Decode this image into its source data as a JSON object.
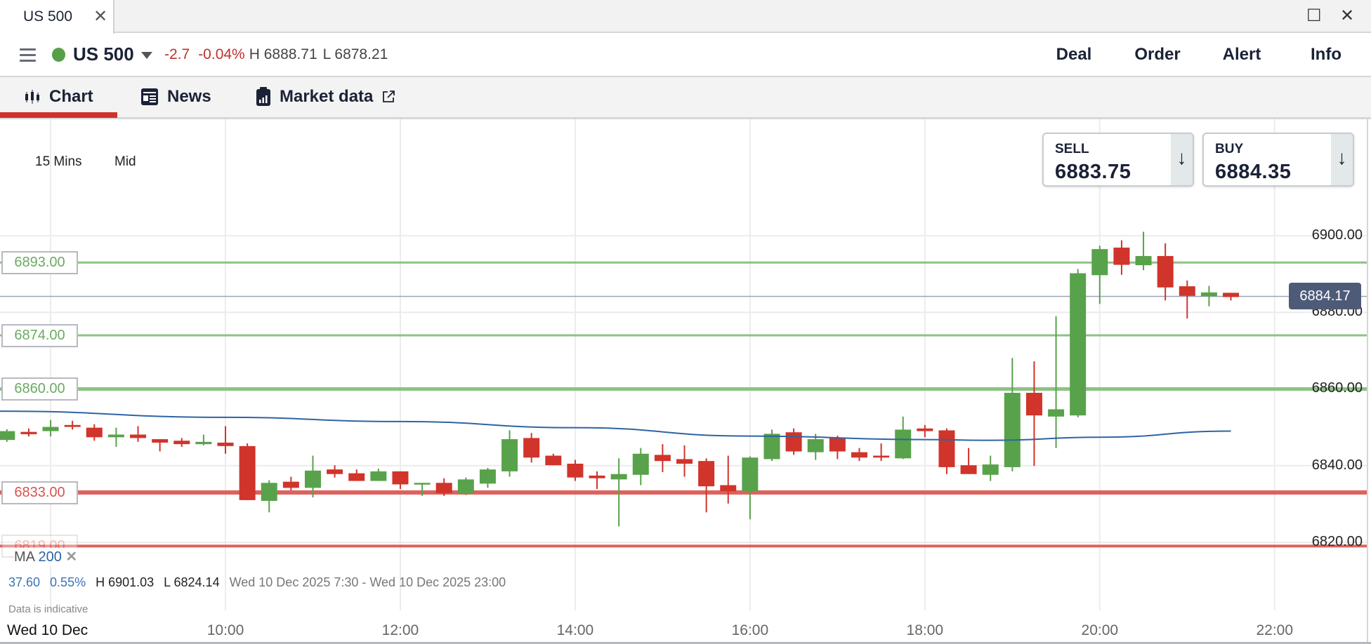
{
  "window": {
    "tab_label": "US 500",
    "close_tab_icon": "close-icon",
    "maximize_icon": "maximize-icon",
    "close_icon": "close-icon"
  },
  "instrument": {
    "name": "US 500",
    "status_color": "#56a04a",
    "change": "-2.7",
    "change_pct": "-0.04%",
    "high": "H 6888.71",
    "low": "L 6878.21",
    "actions": [
      "Deal",
      "Order",
      "Alert",
      "Info"
    ]
  },
  "tabs": [
    {
      "label": "Chart",
      "icon": "candlestick-icon",
      "active": true
    },
    {
      "label": "News",
      "icon": "newspaper-icon",
      "active": false
    },
    {
      "label": "Market data",
      "icon": "clipboard-chart-icon",
      "active": false,
      "external_icon": "external-link-icon"
    }
  ],
  "chart_controls": {
    "interval": "15 Mins",
    "price_type": "Mid"
  },
  "quotes": {
    "sell": {
      "label": "SELL",
      "price": "6883.75"
    },
    "buy": {
      "label": "BUY",
      "price": "6884.35"
    }
  },
  "indicator": {
    "name": "MA",
    "period": "200"
  },
  "summary": {
    "change": "37.60",
    "change_pct": "0.55%",
    "high": "H 6901.03",
    "low": "L 6824.14",
    "range": "Wed 10 Dec 2025 7:30 - Wed 10 Dec 2025 23:00",
    "note": "Data is indicative"
  },
  "colors": {
    "up": "#58a24b",
    "down": "#d0342b",
    "ma": "#2f64a3",
    "level_green": "#86c07e",
    "level_red": "#dd5a55",
    "current": "#4d5b78"
  },
  "chart_data": {
    "type": "candlestick",
    "date_label": "Wed 10 Dec",
    "x_ticks": [
      "10:00",
      "12:00",
      "14:00",
      "16:00",
      "18:00",
      "20:00",
      "22:00"
    ],
    "y_ticks": [
      "6900.00",
      "6880.00",
      "6860.00",
      "6840.00",
      "6820.00"
    ],
    "ylim": [
      6812,
      6940
    ],
    "grid": true,
    "current_price": "6884.17",
    "levels": [
      {
        "label": "6893.00",
        "value": 6893,
        "color": "green"
      },
      {
        "label": "6874.00",
        "value": 6874,
        "color": "green"
      },
      {
        "label": "6860.00",
        "value": 6860,
        "color": "green"
      },
      {
        "label": "6833.00",
        "value": 6833,
        "color": "red"
      },
      {
        "label": "6819.00",
        "value": 6819,
        "color": "red"
      }
    ],
    "candles_columns": [
      "time",
      "open",
      "high",
      "low",
      "close"
    ],
    "candles": [
      [
        "07:30",
        6846.7,
        6849.5,
        6846.2,
        6849.0
      ],
      [
        "07:45",
        6848.8,
        6849.7,
        6847.6,
        6848.2
      ],
      [
        "08:00",
        6849.0,
        6851.9,
        6847.6,
        6850.1
      ],
      [
        "08:15",
        6850.6,
        6851.7,
        6849.4,
        6850.1
      ],
      [
        "08:30",
        6849.9,
        6850.8,
        6846.5,
        6847.4
      ],
      [
        "08:45",
        6847.4,
        6849.9,
        6844.9,
        6848.1
      ],
      [
        "09:00",
        6848.1,
        6850.3,
        6846.2,
        6847.2
      ],
      [
        "09:15",
        6846.9,
        6846.9,
        6843.7,
        6846.0
      ],
      [
        "09:30",
        6846.5,
        6847.2,
        6844.9,
        6845.6
      ],
      [
        "09:45",
        6845.6,
        6848.1,
        6845.3,
        6846.2
      ],
      [
        "10:00",
        6846.0,
        6850.3,
        6843.1,
        6845.1
      ],
      [
        "10:15",
        6845.1,
        6845.8,
        6831.0,
        6831.0
      ],
      [
        "10:30",
        6830.8,
        6836.2,
        6827.8,
        6835.5
      ],
      [
        "10:45",
        6835.8,
        6837.1,
        6833.5,
        6834.2
      ],
      [
        "11:00",
        6834.2,
        6842.6,
        6831.7,
        6838.7
      ],
      [
        "11:15",
        6839.0,
        6840.1,
        6836.9,
        6837.8
      ],
      [
        "11:30",
        6838.0,
        6839.0,
        6836.0,
        6836.0
      ],
      [
        "11:45",
        6836.0,
        6839.2,
        6836.0,
        6838.5
      ],
      [
        "12:00",
        6838.5,
        6838.5,
        6833.9,
        6835.1
      ],
      [
        "12:15",
        6835.3,
        6835.5,
        6832.1,
        6835.5
      ],
      [
        "12:30",
        6835.5,
        6836.7,
        6832.1,
        6832.8
      ],
      [
        "12:45",
        6832.8,
        6836.9,
        6832.3,
        6836.4
      ],
      [
        "13:00",
        6835.3,
        6839.4,
        6834.2,
        6839.0
      ],
      [
        "13:15",
        6838.5,
        6849.2,
        6837.1,
        6846.9
      ],
      [
        "13:30",
        6847.2,
        6848.5,
        6840.8,
        6842.1
      ],
      [
        "13:45",
        6842.6,
        6843.1,
        6840.1,
        6840.1
      ],
      [
        "14:00",
        6840.5,
        6841.5,
        6836.0,
        6836.9
      ],
      [
        "14:15",
        6837.4,
        6838.5,
        6833.9,
        6836.7
      ],
      [
        "14:30",
        6836.4,
        6841.9,
        6824.14,
        6837.8
      ],
      [
        "14:45",
        6837.6,
        6844.6,
        6834.9,
        6843.1
      ],
      [
        "15:00",
        6842.8,
        6845.6,
        6838.3,
        6841.2
      ],
      [
        "15:15",
        6841.7,
        6845.3,
        6837.1,
        6840.5
      ],
      [
        "15:30",
        6841.2,
        6841.9,
        6827.8,
        6834.6
      ],
      [
        "15:45",
        6834.9,
        6842.6,
        6830.1,
        6833.3
      ],
      [
        "16:00",
        6833.3,
        6842.4,
        6826.0,
        6842.1
      ],
      [
        "16:15",
        6841.7,
        6849.4,
        6841.2,
        6848.3
      ],
      [
        "16:30",
        6848.7,
        6849.7,
        6842.8,
        6843.7
      ],
      [
        "16:45",
        6843.5,
        6848.3,
        6841.5,
        6846.9
      ],
      [
        "17:00",
        6847.2,
        6847.8,
        6841.7,
        6843.7
      ],
      [
        "17:15",
        6843.5,
        6844.6,
        6841.2,
        6842.1
      ],
      [
        "17:30",
        6842.6,
        6845.8,
        6841.2,
        6842.1
      ],
      [
        "17:45",
        6841.9,
        6852.8,
        6841.7,
        6849.4
      ],
      [
        "18:00",
        6849.7,
        6850.6,
        6847.4,
        6849.0
      ],
      [
        "18:15",
        6849.2,
        6849.7,
        6837.8,
        6839.6
      ],
      [
        "18:30",
        6840.1,
        6844.6,
        6837.8,
        6837.8
      ],
      [
        "18:45",
        6837.6,
        6842.6,
        6836.0,
        6840.3
      ],
      [
        "19:00",
        6839.6,
        6868.1,
        6838.5,
        6859.0
      ],
      [
        "19:15",
        6859.0,
        6867.2,
        6839.9,
        6853.1
      ],
      [
        "19:30",
        6852.8,
        6879.0,
        6844.6,
        6854.7
      ],
      [
        "19:45",
        6853.1,
        6891.3,
        6852.6,
        6890.2
      ],
      [
        "20:00",
        6889.7,
        6897.4,
        6882.2,
        6896.5
      ],
      [
        "20:15",
        6896.9,
        6898.8,
        6889.8,
        6892.4
      ],
      [
        "20:30",
        6892.3,
        6901.03,
        6891.0,
        6894.7
      ],
      [
        "20:45",
        6894.7,
        6898.0,
        6883.1,
        6886.5
      ],
      [
        "21:00",
        6886.8,
        6888.3,
        6878.4,
        6884.3
      ],
      [
        "21:15",
        6884.2,
        6886.9,
        6881.6,
        6885.2
      ],
      [
        "21:30",
        6885.1,
        6885.1,
        6883.1,
        6884.0
      ]
    ],
    "ma_series": {
      "name": "MA 200",
      "points": [
        [
          "07:15",
          6854.2
        ],
        [
          "10:00",
          6852.6
        ],
        [
          "12:00",
          6851.5
        ],
        [
          "14:00",
          6849.9
        ],
        [
          "16:00",
          6847.7
        ],
        [
          "18:00",
          6846.8
        ],
        [
          "18:45",
          6846.6
        ],
        [
          "20:00",
          6847.4
        ],
        [
          "21:30",
          6849.0
        ]
      ]
    }
  }
}
